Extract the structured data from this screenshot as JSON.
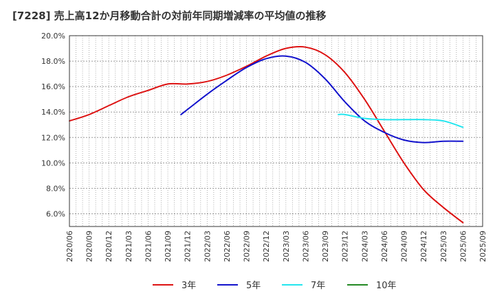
{
  "title": "[7228]  売上高12か月移動合計の対前年同期増減率の平均値の推移",
  "chart_data": {
    "type": "line",
    "title": "[7228]  売上高12か月移動合計の対前年同期増減率の平均値の推移",
    "xlabel": "",
    "ylabel": "",
    "ylim": [
      5.0,
      20.0
    ],
    "y_ticks": [
      "6.0%",
      "8.0%",
      "10.0%",
      "12.0%",
      "14.0%",
      "16.0%",
      "18.0%",
      "20.0%"
    ],
    "y_tick_values": [
      6,
      8,
      10,
      12,
      14,
      16,
      18,
      20
    ],
    "x_ticks": [
      "2020/06",
      "2020/09",
      "2020/12",
      "2021/03",
      "2021/06",
      "2021/09",
      "2021/12",
      "2022/03",
      "2022/06",
      "2022/09",
      "2022/12",
      "2023/03",
      "2023/06",
      "2023/09",
      "2023/12",
      "2024/03",
      "2024/06",
      "2024/09",
      "2024/12",
      "2025/03",
      "2025/06",
      "2025/09"
    ],
    "grid": true,
    "legend_position": "bottom",
    "series": [
      {
        "name": "3年",
        "color": "#dd1111",
        "points": [
          [
            "2020/06",
            13.3
          ],
          [
            "2020/09",
            13.8
          ],
          [
            "2020/12",
            14.5
          ],
          [
            "2021/03",
            15.2
          ],
          [
            "2021/06",
            15.7
          ],
          [
            "2021/09",
            16.2
          ],
          [
            "2021/12",
            16.2
          ],
          [
            "2022/03",
            16.4
          ],
          [
            "2022/06",
            16.9
          ],
          [
            "2022/09",
            17.6
          ],
          [
            "2022/12",
            18.4
          ],
          [
            "2023/03",
            19.0
          ],
          [
            "2023/06",
            19.1
          ],
          [
            "2023/09",
            18.5
          ],
          [
            "2023/12",
            17.1
          ],
          [
            "2024/03",
            15.0
          ],
          [
            "2024/06",
            12.5
          ],
          [
            "2024/09",
            10.0
          ],
          [
            "2024/12",
            7.9
          ],
          [
            "2025/03",
            6.5
          ],
          [
            "2025/06",
            5.3
          ]
        ]
      },
      {
        "name": "5年",
        "color": "#1111cc",
        "points": [
          [
            "2021/11",
            13.8
          ],
          [
            "2021/12",
            14.2
          ],
          [
            "2022/03",
            15.4
          ],
          [
            "2022/06",
            16.5
          ],
          [
            "2022/09",
            17.5
          ],
          [
            "2022/12",
            18.2
          ],
          [
            "2023/03",
            18.4
          ],
          [
            "2023/06",
            17.9
          ],
          [
            "2023/09",
            16.6
          ],
          [
            "2023/12",
            14.8
          ],
          [
            "2024/03",
            13.3
          ],
          [
            "2024/06",
            12.4
          ],
          [
            "2024/09",
            11.8
          ],
          [
            "2024/12",
            11.6
          ],
          [
            "2025/03",
            11.7
          ],
          [
            "2025/06",
            11.7
          ]
        ]
      },
      {
        "name": "7年",
        "color": "#22e5ee",
        "points": [
          [
            "2023/11",
            13.8
          ],
          [
            "2023/12",
            13.8
          ],
          [
            "2024/03",
            13.5
          ],
          [
            "2024/06",
            13.4
          ],
          [
            "2024/09",
            13.4
          ],
          [
            "2024/12",
            13.4
          ],
          [
            "2025/03",
            13.3
          ],
          [
            "2025/06",
            12.8
          ]
        ]
      },
      {
        "name": "10年",
        "color": "#228822",
        "points": []
      }
    ]
  }
}
